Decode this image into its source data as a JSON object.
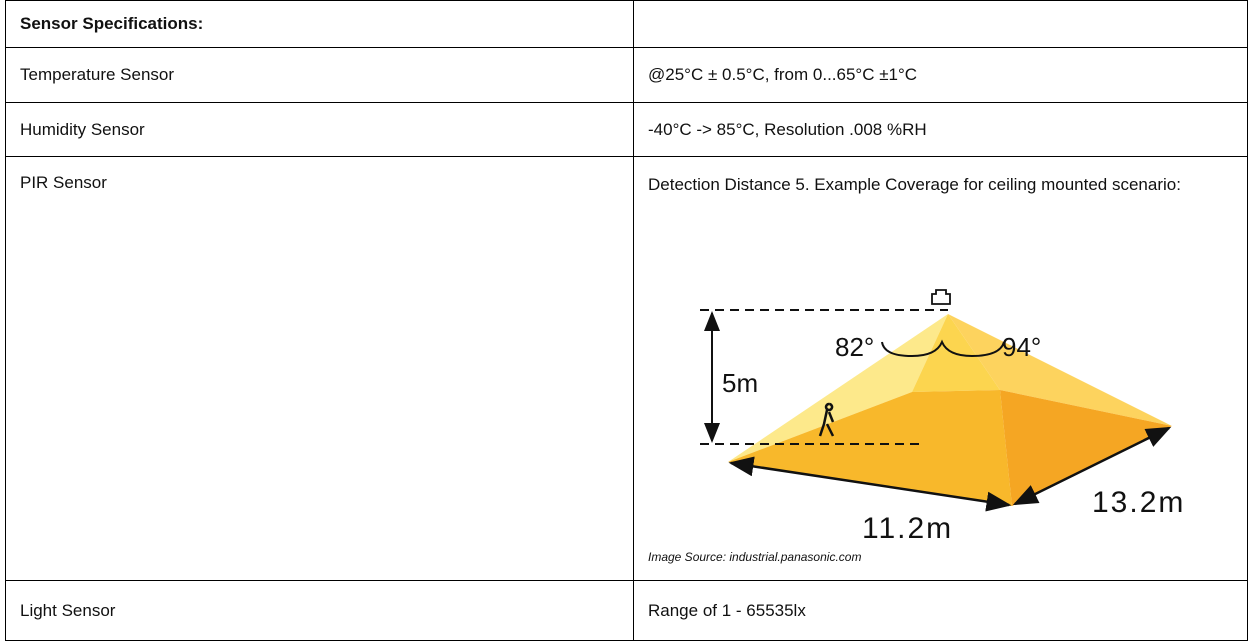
{
  "table": {
    "header": {
      "title": "Sensor Specifications:"
    },
    "rows": [
      {
        "name": "Temperature Sensor",
        "spec": "@25°C ± 0.5°C, from 0...65°C ±1°C"
      },
      {
        "name": "Humidity Sensor",
        "spec": "-40°C -> 85°C, Resolution .008 %RH"
      },
      {
        "name": "PIR Sensor",
        "spec": "Detection Distance 5. Example Coverage for ceiling mounted scenario:",
        "figure": {
          "angle_left": "82°",
          "angle_right": "94°",
          "height": "5m",
          "width": "11.2m",
          "depth": "13.2m",
          "source": "Image Source: industrial.panasonic.com"
        }
      },
      {
        "name": "Light Sensor",
        "spec": "Range of 1 - 65535lx"
      }
    ]
  }
}
